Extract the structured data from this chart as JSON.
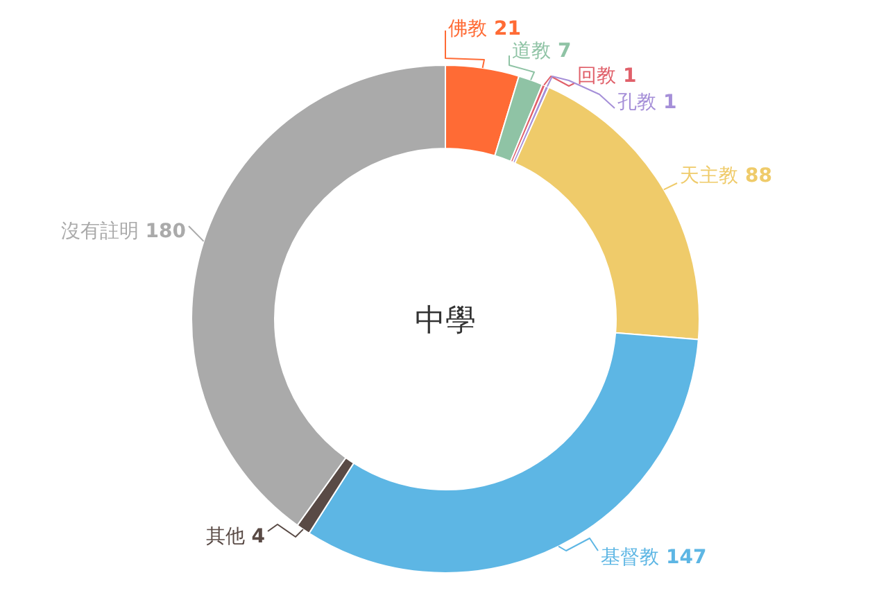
{
  "chart_data": {
    "type": "donut",
    "title": "中學",
    "categories": [
      "佛教",
      "道教",
      "回教",
      "孔教",
      "天主教",
      "基督教",
      "其他",
      "沒有註明"
    ],
    "values": [
      21,
      7,
      1,
      1,
      88,
      147,
      4,
      180
    ],
    "colors": [
      "#ff6b35",
      "#8fc3a5",
      "#e0606a",
      "#a58fd8",
      "#efcb6a",
      "#5db6e4",
      "#594a45",
      "#aaaaaa"
    ],
    "data_labels": true
  }
}
